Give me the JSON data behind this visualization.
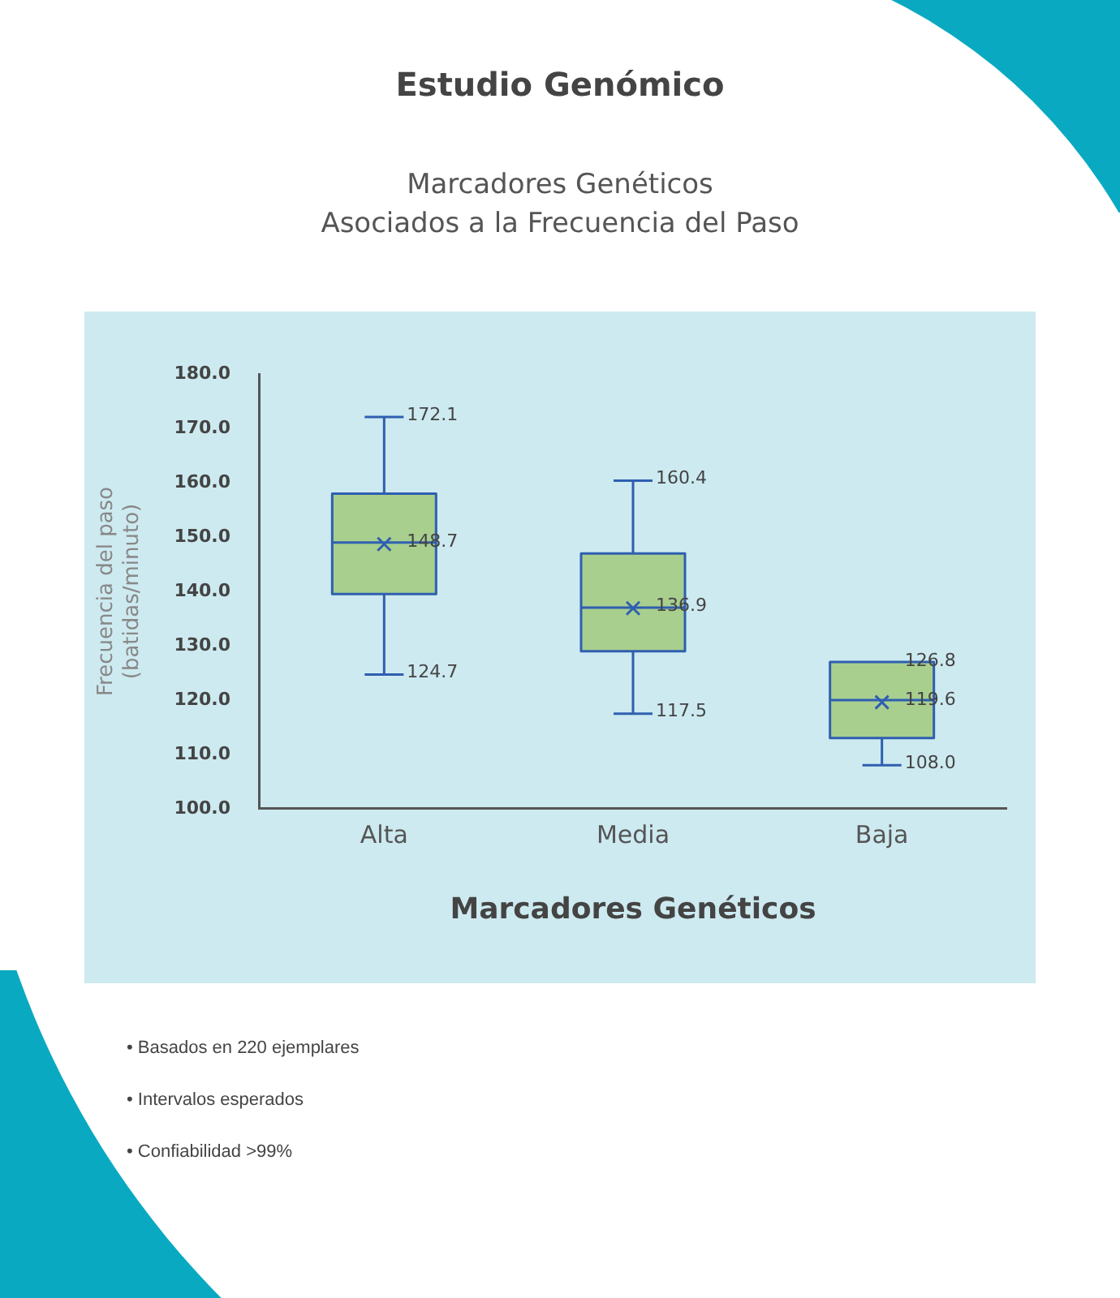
{
  "chart_data": {
    "type": "box",
    "title": "Estudio Genómico",
    "subtitle": "Marcadores Genéticos\nAsociados a la Frecuencia del Paso",
    "xlabel": "Marcadores Genéticos",
    "ylabel": "Frecuencia del paso\n(batidas/minuto)",
    "categories": [
      "Alta",
      "Media",
      "Baja"
    ],
    "series": [
      {
        "color": "#a9cf8e",
        "boxes": [
          {
            "low": 124.7,
            "q1": 139.5,
            "median": 149,
            "q3": 158,
            "high": 172.1,
            "mean": 148.7
          },
          {
            "low": 117.5,
            "q1": 129,
            "median": 137,
            "q3": 147,
            "high": 160.4,
            "mean": 136.9
          },
          {
            "low": 108.0,
            "q1": 113,
            "median": 120,
            "q3": 127,
            "high": 126.8,
            "mean": 119.6
          }
        ]
      }
    ],
    "ylim": [
      100,
      180
    ],
    "yticks": [
      {
        "value": 100,
        "label": "100.0"
      },
      {
        "value": 110,
        "label": "110.0"
      },
      {
        "value": 120,
        "label": "120.0"
      },
      {
        "value": 130,
        "label": "130.0"
      },
      {
        "value": 140,
        "label": "140.0"
      },
      {
        "value": 150,
        "label": "150.0"
      },
      {
        "value": 160,
        "label": "160.0"
      },
      {
        "value": 170,
        "label": "170.0"
      },
      {
        "value": 180,
        "label": "180.0"
      }
    ],
    "grid": false,
    "legend": false,
    "marker": "cross",
    "annotations": [
      "• Basados en 220 ejemplares",
      "• Intervalos esperados",
      "• Confiabilidad >99%",
      {
        "text": "172.1",
        "x": "Alta",
        "y": 172.1
      },
      {
        "text": "148.7",
        "x": "Alta",
        "y": 148.7
      },
      {
        "text": "124.7",
        "x": "Alta",
        "y": 124.7
      },
      {
        "text": "160.4",
        "x": "Media",
        "y": 160.4
      },
      {
        "text": "136.9",
        "x": "Media",
        "y": 136.9
      },
      {
        "text": "117.5",
        "x": "Media",
        "y": 117.5
      },
      {
        "text": "126.8",
        "x": "Baja",
        "y": 126.8
      },
      {
        "text": "119.6",
        "x": "Baja",
        "y": 119.6
      },
      {
        "text": "108.0",
        "x": "Baja",
        "y": 108.0
      }
    ]
  }
}
